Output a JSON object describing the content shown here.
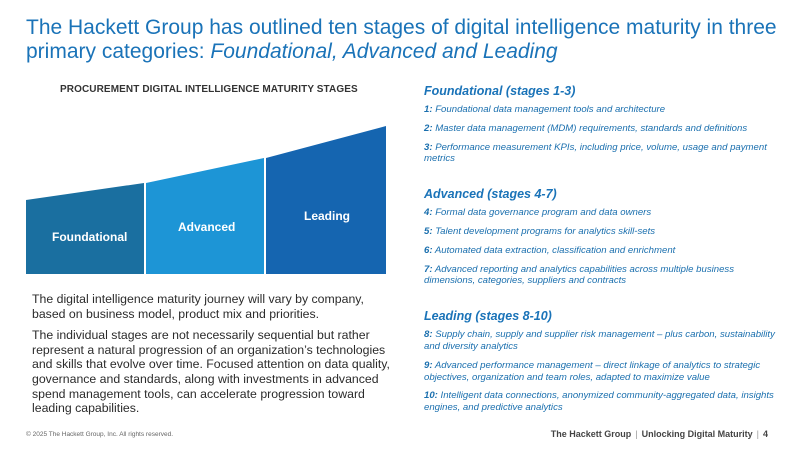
{
  "slide": {
    "title_plain": "The Hackett Group has outlined ten stages of digital intelligence maturity in three primary categories: ",
    "title_italic": "Foundational, Advanced and Leading"
  },
  "chart": {
    "heading": "PROCUREMENT DIGITAL INTELLIGENCE MATURITY STAGES",
    "bars": [
      {
        "label": "Foundational",
        "color": "#1a6fa0"
      },
      {
        "label": "Advanced",
        "color": "#1d95d6"
      },
      {
        "label": "Leading",
        "color": "#1565b0"
      }
    ]
  },
  "left_text": {
    "p1": "The digital intelligence maturity journey will vary by company, based on business model, product mix and priorities.",
    "p2": "The individual stages are not necessarily sequential but rather represent a natural progression of an organization’s technologies and skills that evolve over time. Focused attention on data quality, governance and standards, along with investments in advanced spend management tools, can accelerate progression toward leading capabilities."
  },
  "sections": [
    {
      "heading": "Foundational (stages 1-3)",
      "items": [
        {
          "num": "1:",
          "text": " Foundational data management tools and architecture"
        },
        {
          "num": "2:",
          "text": " Master data management (MDM) requirements, standards and definitions"
        },
        {
          "num": "3:",
          "text": " Performance measurement KPIs, including price, volume, usage and payment metrics"
        }
      ]
    },
    {
      "heading": "Advanced (stages 4-7)",
      "items": [
        {
          "num": "4:",
          "text": " Formal data governance program and data owners"
        },
        {
          "num": "5:",
          "text": " Talent development programs for analytics skill-sets"
        },
        {
          "num": "6:",
          "text": " Automated data extraction, classification and enrichment"
        },
        {
          "num": "7:",
          "text": " Advanced reporting and analytics capabilities across multiple business dimensions, categories, suppliers and contracts"
        }
      ]
    },
    {
      "heading": "Leading (stages 8-10)",
      "items": [
        {
          "num": "8:",
          "text": " Supply chain, supply and supplier risk management – plus carbon, sustainability and diversity analytics"
        },
        {
          "num": "9:",
          "text": " Advanced performance management – direct linkage of analytics to strategic objectives, organization and team roles, adapted to maximize value"
        },
        {
          "num": "10:",
          "text": " Intelligent data connections, anonymized community-aggregated data, insights engines, and predictive analytics"
        }
      ]
    }
  ],
  "footer": {
    "copyright": "© 2025 The Hackett Group, Inc. All rights reserved.",
    "brand": "The Hackett Group",
    "sep1": "|",
    "report": "Unlocking Digital Maturity",
    "sep2": "|",
    "page": "4"
  }
}
